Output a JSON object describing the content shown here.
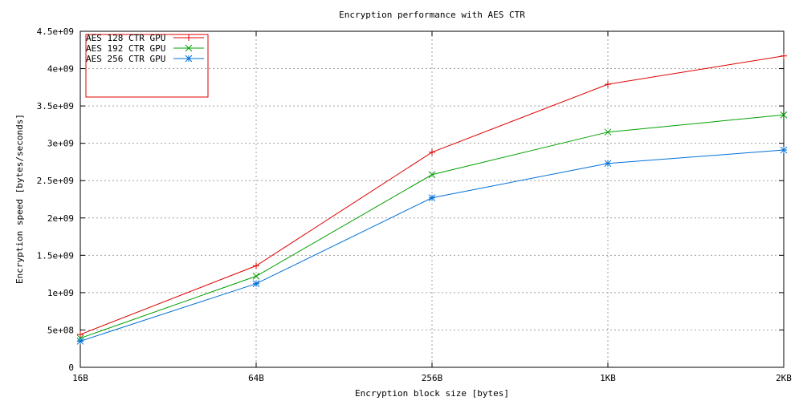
{
  "chart_data": {
    "type": "line",
    "title": "Encryption performance with AES CTR",
    "xlabel": "Encryption block size [bytes]",
    "ylabel": "Encryption speed [bytes/seconds]",
    "categories": [
      "16B",
      "64B",
      "256B",
      "1KB",
      "2KB"
    ],
    "y_ticks": [
      "0",
      "5e+08",
      "1e+09",
      "1.5e+09",
      "2e+09",
      "2.5e+09",
      "3e+09",
      "3.5e+09",
      "4e+09",
      "4.5e+09"
    ],
    "ylim": [
      0,
      4500000000
    ],
    "grid": true,
    "legend_position": "top-left",
    "series": [
      {
        "name": "AES 128 CTR GPU",
        "color": "#e00000",
        "marker": "plus",
        "values": [
          440000000,
          1360000000,
          2880000000,
          3790000000,
          4170000000
        ]
      },
      {
        "name": "AES 192 CTR GPU",
        "color": "#00a000",
        "marker": "cross",
        "values": [
          390000000,
          1220000000,
          2580000000,
          3150000000,
          3380000000
        ]
      },
      {
        "name": "AES 256 CTR GPU",
        "color": "#0070d8",
        "marker": "star",
        "values": [
          350000000,
          1120000000,
          2270000000,
          2730000000,
          2910000000
        ]
      }
    ]
  }
}
